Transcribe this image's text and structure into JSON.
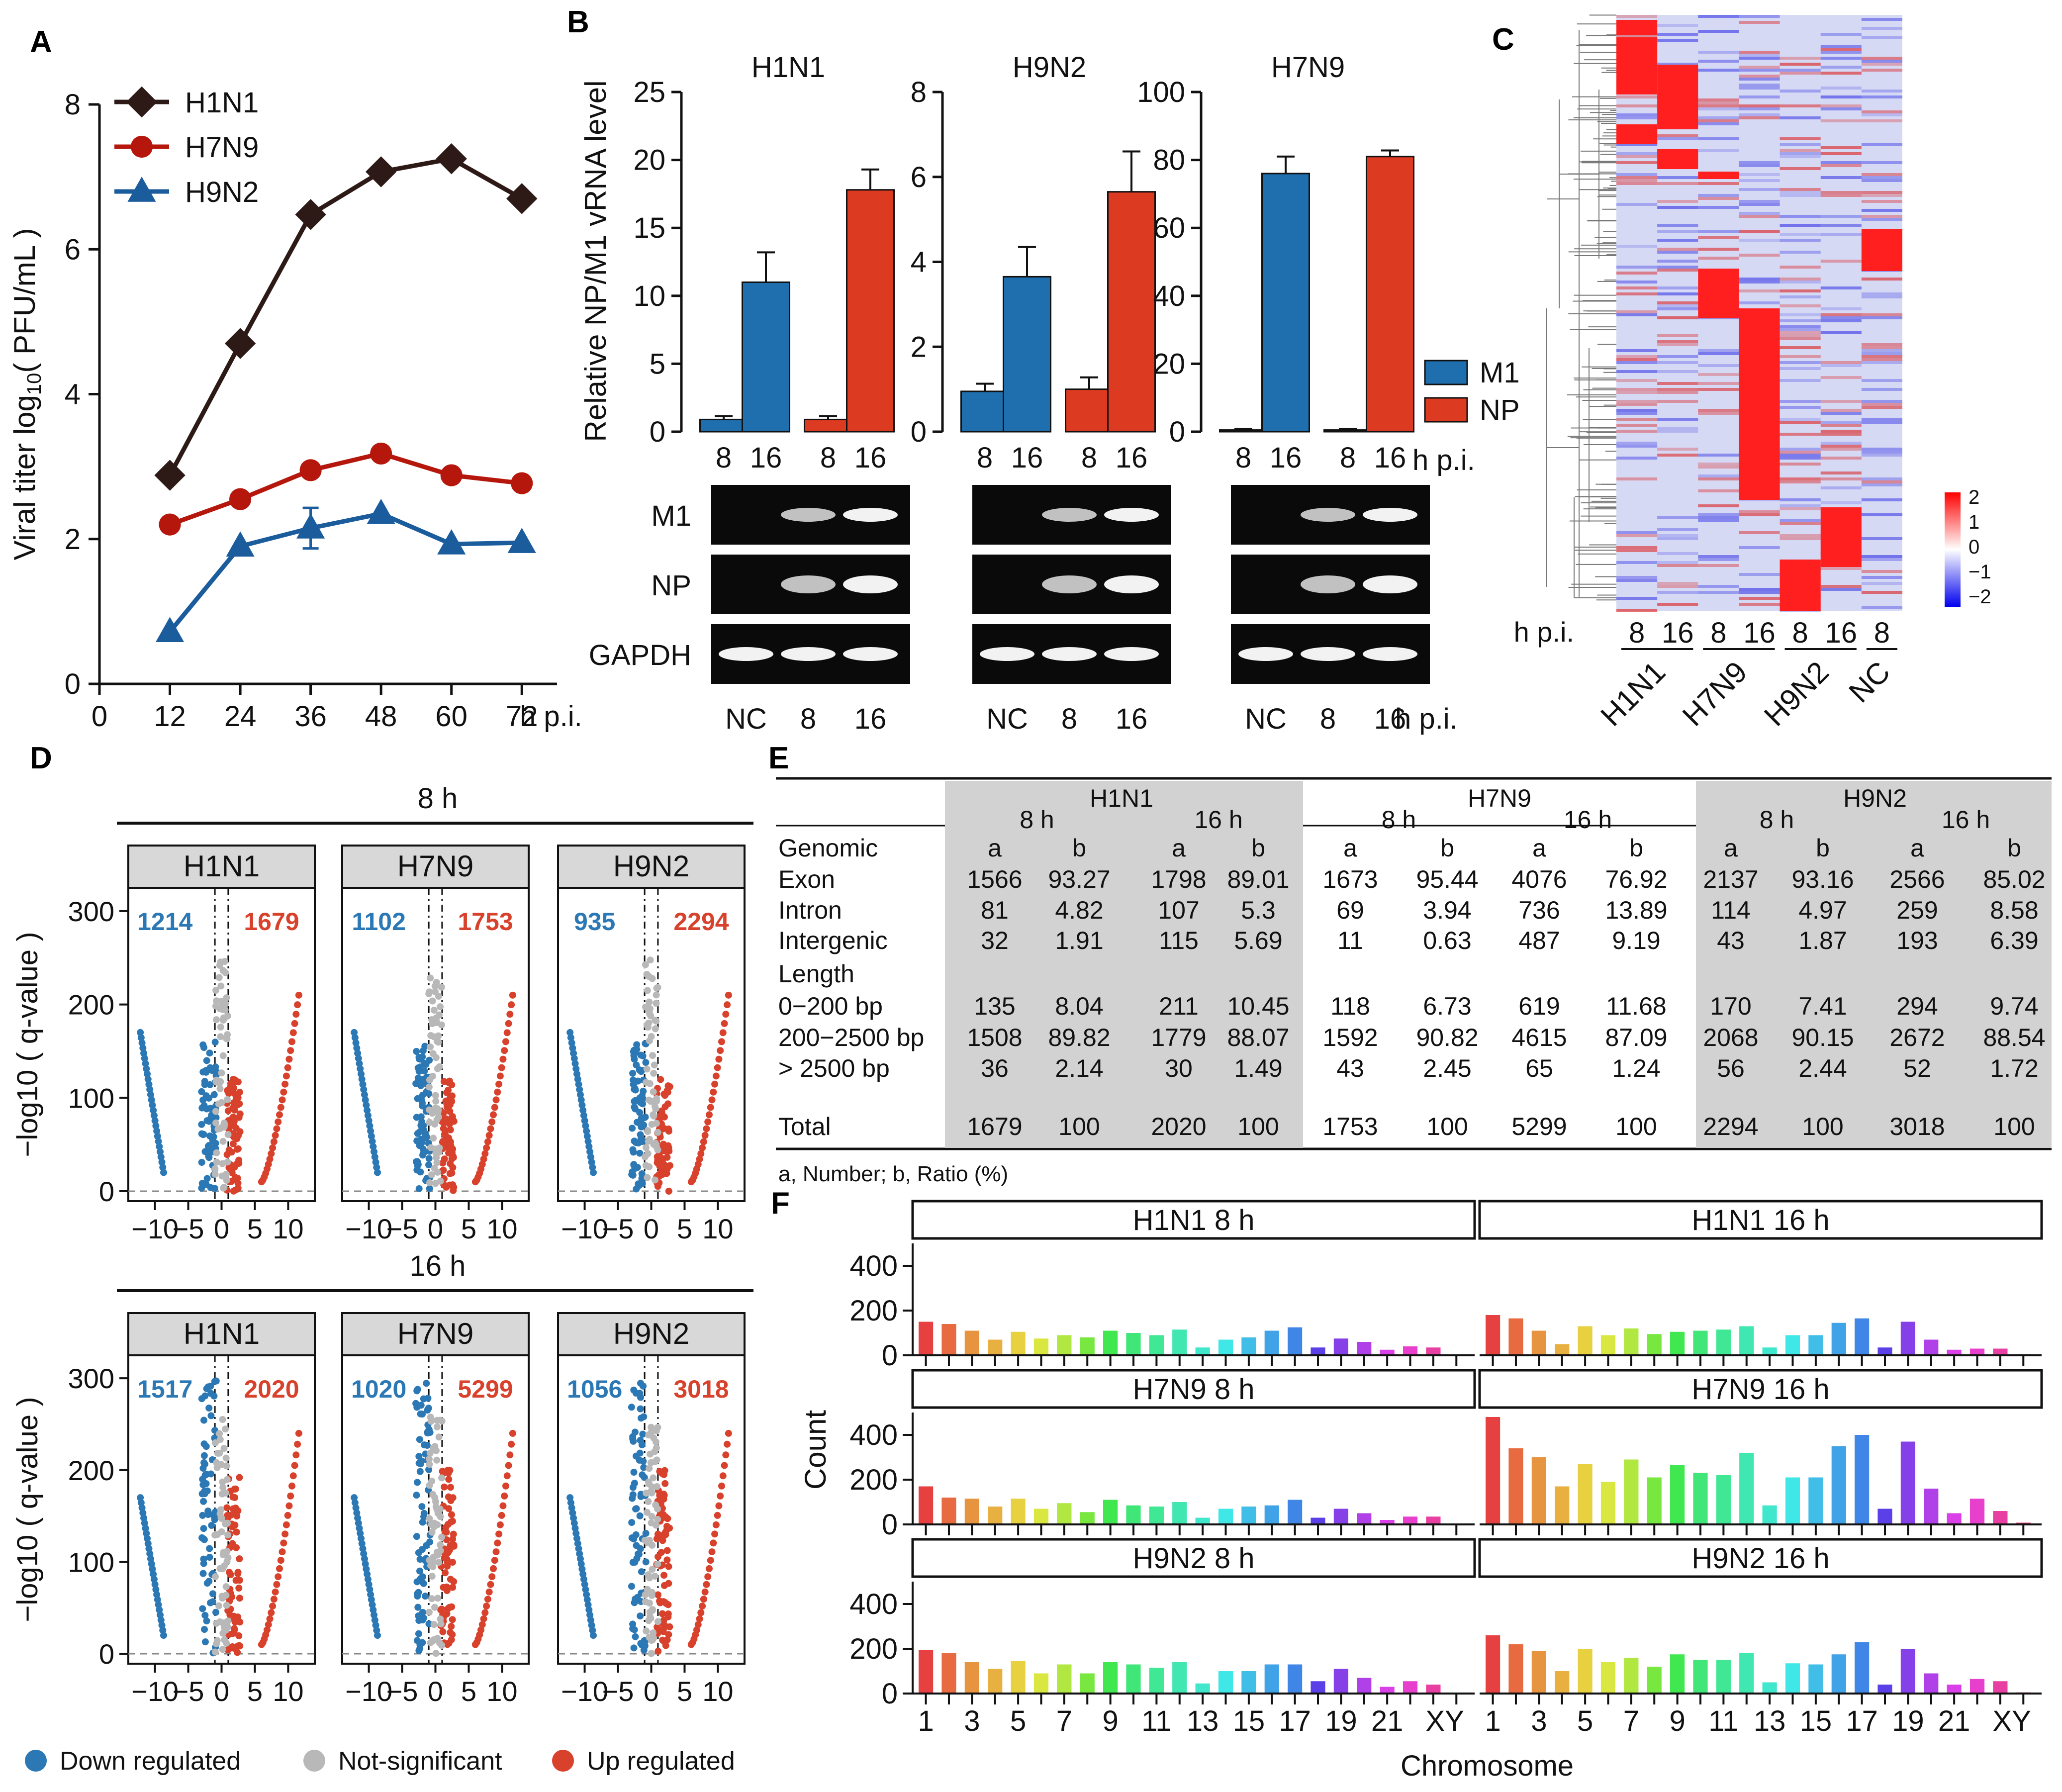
{
  "panel_labels": {
    "A": "A",
    "B": "B",
    "C": "C",
    "D": "D",
    "E": "E",
    "F": "F"
  },
  "colors": {
    "h1n1": "#2d1a17",
    "h7n9": "#b5170d",
    "h9n2": "#1b5c9c",
    "m1": "#1f6fae",
    "np": "#dd3a22",
    "down": "#2b78b5",
    "ns": "#b8b8b8",
    "up": "#d8412b",
    "grey": "#d8d8d8"
  },
  "chart_data": [
    {
      "id": "A",
      "type": "line",
      "ylabel": "Viral titer  log10( PFU/mL )",
      "x": [
        12,
        24,
        36,
        48,
        60,
        72
      ],
      "xticks": [
        "0",
        "12",
        "24",
        "36",
        "48",
        "60",
        "72"
      ],
      "xunit": "h p.i.",
      "yticks": [
        "0",
        "2",
        "4",
        "6",
        "8"
      ],
      "ylim": [
        0,
        8
      ],
      "xlim": [
        0,
        78
      ],
      "series": [
        {
          "name": "H1N1",
          "values": [
            2.88,
            4.7,
            6.48,
            7.07,
            7.25,
            6.7
          ]
        },
        {
          "name": "H7N9",
          "values": [
            2.2,
            2.55,
            2.95,
            3.18,
            2.88,
            2.77
          ]
        },
        {
          "name": "H9N2",
          "values": [
            0.72,
            1.9,
            2.15,
            2.35,
            1.93,
            1.95
          ],
          "err": [
            0,
            0,
            0.28,
            0,
            0,
            0
          ]
        }
      ]
    },
    {
      "id": "B",
      "type": "bar",
      "ylabel": "Relative NP/M1 vRNA level",
      "legend": [
        "M1",
        "NP"
      ],
      "xunit": "h p.i.",
      "gel_rows": [
        "M1",
        "NP",
        "GAPDH"
      ],
      "gel_lanes": [
        "NC",
        "8",
        "16"
      ],
      "subplots": [
        {
          "title": "H1N1",
          "ylim": [
            0,
            25
          ],
          "yticks": [
            "0",
            "5",
            "10",
            "15",
            "20",
            "25"
          ],
          "categories": [
            "8",
            "16",
            "8",
            "16"
          ],
          "values": [
            0.9,
            11,
            0.9,
            17.8
          ],
          "err": [
            0.25,
            2.2,
            0.25,
            1.5
          ]
        },
        {
          "title": "H9N2",
          "ylim": [
            0,
            8
          ],
          "yticks": [
            "0",
            "2",
            "4",
            "6",
            "8"
          ],
          "categories": [
            "8",
            "16",
            "8",
            "16"
          ],
          "values": [
            0.95,
            3.65,
            1,
            5.65
          ],
          "err": [
            0.18,
            0.7,
            0.28,
            0.95
          ]
        },
        {
          "title": "H7N9",
          "ylim": [
            0,
            100
          ],
          "yticks": [
            "0",
            "20",
            "40",
            "60",
            "80",
            "100"
          ],
          "categories": [
            "8",
            "16",
            "8",
            "16"
          ],
          "values": [
            0.5,
            76,
            0.5,
            81
          ],
          "err": [
            0.3,
            5,
            0.3,
            1.8
          ]
        }
      ]
    },
    {
      "id": "C",
      "type": "heatmap",
      "columns": [
        "8",
        "16",
        "8",
        "16",
        "8",
        "16",
        "8"
      ],
      "xprefix": "h p.i.",
      "groups": [
        "H1N1",
        "H7N9",
        "H9N2",
        "NC"
      ],
      "scale": [
        "2",
        "1",
        "0",
        "−1",
        "−2"
      ]
    },
    {
      "id": "D",
      "type": "scatter",
      "ylabel": "−log10 ( q-value )",
      "yticks": [
        "0",
        "100",
        "200",
        "300"
      ],
      "xticks": [
        "−10",
        "−5",
        "0",
        "5",
        "10"
      ],
      "rows": [
        {
          "label": "8 h",
          "panels": [
            {
              "name": "H1N1",
              "down": "1214",
              "up": "1679"
            },
            {
              "name": "H7N9",
              "down": "1102",
              "up": "1753"
            },
            {
              "name": "H9N2",
              "down": "935",
              "up": "2294"
            }
          ]
        },
        {
          "label": "16 h",
          "panels": [
            {
              "name": "H1N1",
              "down": "1517",
              "up": "2020"
            },
            {
              "name": "H7N9",
              "down": "1020",
              "up": "5299"
            },
            {
              "name": "H9N2",
              "down": "1056",
              "up": "3018"
            }
          ]
        }
      ],
      "legend": [
        "Down regulated",
        "Not-significant",
        "Up regulated"
      ]
    },
    {
      "id": "E",
      "type": "table",
      "groups": [
        "H1N1",
        "H7N9",
        "H9N2"
      ],
      "times": [
        "8 h",
        "16 h"
      ],
      "cols": [
        "a",
        "b"
      ],
      "rows": [
        {
          "label": "Genomic",
          "values": [
            "a",
            "b",
            "a",
            "b",
            "a",
            "b",
            "a",
            "b",
            "a",
            "b",
            "a",
            "b"
          ]
        },
        {
          "label": "Exon",
          "values": [
            "1566",
            "93.27",
            "1798",
            "89.01",
            "1673",
            "95.44",
            "4076",
            "76.92",
            "2137",
            "93.16",
            "2566",
            "85.02"
          ]
        },
        {
          "label": "Intron",
          "values": [
            "81",
            "4.82",
            "107",
            "5.3",
            "69",
            "3.94",
            "736",
            "13.89",
            "114",
            "4.97",
            "259",
            "8.58"
          ]
        },
        {
          "label": "Intergenic",
          "values": [
            "32",
            "1.91",
            "115",
            "5.69",
            "11",
            "0.63",
            "487",
            "9.19",
            "43",
            "1.87",
            "193",
            "6.39"
          ]
        },
        {
          "label": "Length",
          "values": [
            "",
            "",
            "",
            "",
            "",
            "",
            "",
            "",
            "",
            "",
            "",
            ""
          ]
        },
        {
          "label": "0−200 bp",
          "values": [
            "135",
            "8.04",
            "211",
            "10.45",
            "118",
            "6.73",
            "619",
            "11.68",
            "170",
            "7.41",
            "294",
            "9.74"
          ]
        },
        {
          "label": "200−2500 bp",
          "values": [
            "1508",
            "89.82",
            "1779",
            "88.07",
            "1592",
            "90.82",
            "4615",
            "87.09",
            "2068",
            "90.15",
            "2672",
            "88.54"
          ]
        },
        {
          "label": "> 2500 bp",
          "values": [
            "36",
            "2.14",
            "30",
            "1.49",
            "43",
            "2.45",
            "65",
            "1.24",
            "56",
            "2.44",
            "52",
            "1.72"
          ]
        },
        {
          "label": "Total",
          "values": [
            "1679",
            "100",
            "2020",
            "100",
            "1753",
            "100",
            "5299",
            "100",
            "2294",
            "100",
            "3018",
            "100"
          ]
        }
      ],
      "footnote": "a, Number; b, Ratio (%)"
    },
    {
      "id": "F",
      "type": "bar",
      "ylabel": "Count",
      "xlabel": "Chromosome",
      "yticks": [
        "0",
        "200",
        "400"
      ],
      "ylim": [
        0,
        500
      ],
      "categories": [
        "1",
        "2",
        "3",
        "4",
        "5",
        "6",
        "7",
        "8",
        "9",
        "10",
        "11",
        "12",
        "13",
        "14",
        "15",
        "16",
        "17",
        "18",
        "19",
        "20",
        "21",
        "22",
        "X",
        "Y"
      ],
      "xticklabels": [
        "1",
        "3",
        "5",
        "7",
        "9",
        "11",
        "13",
        "15",
        "17",
        "19",
        "21",
        "XY"
      ],
      "facets": [
        {
          "title": "H1N1 8 h",
          "values": [
            150,
            140,
            110,
            70,
            105,
            75,
            90,
            80,
            110,
            100,
            90,
            115,
            35,
            70,
            80,
            110,
            125,
            35,
            75,
            60,
            25,
            40,
            35,
            3
          ]
        },
        {
          "title": "H1N1 16 h",
          "values": [
            180,
            165,
            110,
            50,
            130,
            90,
            120,
            95,
            105,
            110,
            115,
            130,
            35,
            90,
            90,
            145,
            165,
            35,
            150,
            70,
            25,
            30,
            30,
            5
          ]
        },
        {
          "title": "H7N9 8 h",
          "values": [
            170,
            120,
            115,
            80,
            115,
            70,
            95,
            55,
            110,
            85,
            80,
            100,
            30,
            70,
            80,
            85,
            110,
            30,
            70,
            50,
            20,
            35,
            35,
            3
          ]
        },
        {
          "title": "H7N9 16 h",
          "values": [
            480,
            340,
            300,
            170,
            270,
            190,
            290,
            210,
            265,
            230,
            220,
            320,
            85,
            210,
            210,
            350,
            400,
            70,
            370,
            160,
            50,
            115,
            60,
            8
          ]
        },
        {
          "title": "H9N2 8 h",
          "values": [
            195,
            180,
            140,
            110,
            145,
            90,
            130,
            90,
            140,
            130,
            115,
            140,
            45,
            100,
            100,
            130,
            130,
            55,
            110,
            70,
            30,
            55,
            40,
            4
          ]
        },
        {
          "title": "H9N2 16 h",
          "values": [
            260,
            220,
            190,
            100,
            200,
            140,
            160,
            120,
            175,
            150,
            150,
            180,
            50,
            135,
            130,
            175,
            230,
            40,
            200,
            90,
            40,
            65,
            55,
            5
          ]
        }
      ]
    }
  ]
}
